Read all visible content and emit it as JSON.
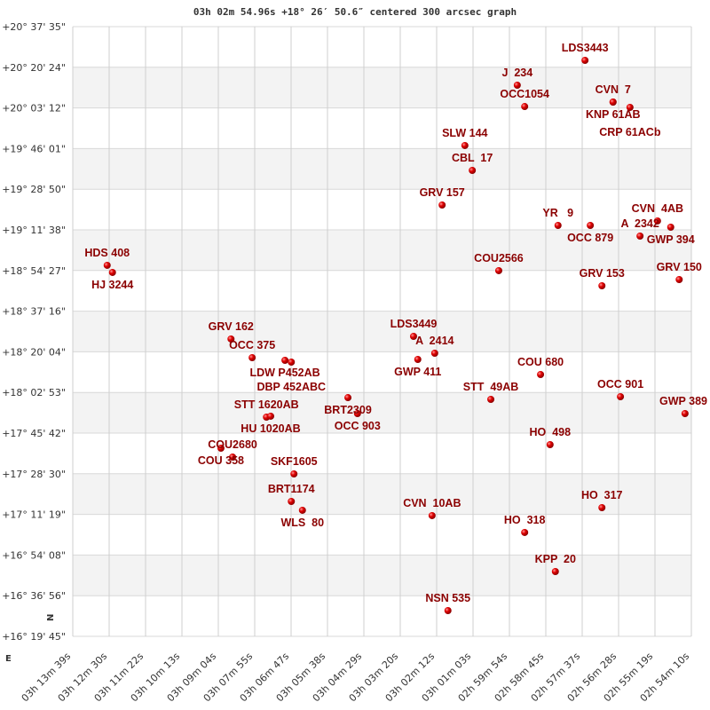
{
  "chart_data": {
    "type": "scatter",
    "title": "03h 02m 54.96s +18° 26′ 50.6″ centered 300 arcsec graph",
    "xlabel": "",
    "ylabel": "",
    "x_axis": "right ascension (decreasing to the right)",
    "x_ticks": [
      "03h 13m 39s",
      "03h 12m 30s",
      "03h 11m 22s",
      "03h 10m 13s",
      "03h 09m 04s",
      "03h 07m 55s",
      "03h 06m 47s",
      "03h 05m 38s",
      "03h 04m 29s",
      "03h 03m 20s",
      "03h 02m 12s",
      "03h 01m 03s",
      "02h 59m 54s",
      "02h 58m 45s",
      "02h 57m 37s",
      "02h 56m 28s",
      "02h 55m 19s",
      "02h 54m 10s"
    ],
    "y_ticks": [
      "+20° 37' 35\"",
      "+20° 20' 24\"",
      "+20° 03' 12\"",
      "+19° 46' 01\"",
      "+19° 28' 50\"",
      "+19° 11' 38\"",
      "+18° 54' 27\"",
      "+18° 37' 16\"",
      "+18° 20' 04\"",
      "+18° 02' 53\"",
      "+17° 45' 42\"",
      "+17° 28' 30\"",
      "+17° 11' 19\"",
      "+16° 54' 08\"",
      "+16° 36' 56\"",
      "+16° 19' 45\""
    ],
    "xlim": [
      "03h 13m 39s",
      "02h 54m 10s"
    ],
    "ylim": [
      "+16° 19' 45\"",
      "+20° 37' 35\""
    ],
    "grid": true,
    "orientation_marks": [
      "N",
      "E"
    ],
    "marker_color": "#dd0000",
    "label_color": "#8b0000",
    "points": [
      {
        "label": "LDS3443",
        "ra": "02h 57m 31s",
        "dec": "+20° 23' 19\""
      },
      {
        "label": "J  234",
        "ra": "02h 59m 39s",
        "dec": "+20° 12' 49\""
      },
      {
        "label": "OCC1054",
        "ra": "02h 59m 25s",
        "dec": "+20° 03' 48\""
      },
      {
        "label": "CVN  7",
        "ra": "02h 56m 38s",
        "dec": "+20° 05' 41\""
      },
      {
        "label": "KNP 61AB",
        "ra": "02h 56m 38s",
        "dec": "+20° 05' 41\""
      },
      {
        "label": "CRP 61ACb",
        "ra": "02h 56m 06s",
        "dec": "+20° 03' 26\""
      },
      {
        "label": "SLW 144",
        "ra": "03h 01m 18s",
        "dec": "+19° 47' 18\""
      },
      {
        "label": "CBL  17",
        "ra": "03h 01m 04s",
        "dec": "+19° 36' 47\""
      },
      {
        "label": "GRV 157",
        "ra": "03h 02m 01s",
        "dec": "+19° 22' 09\""
      },
      {
        "label": "YR   9",
        "ra": "02h 58m 22s",
        "dec": "+19° 13' 31\""
      },
      {
        "label": "OCC 879",
        "ra": "02h 57m 21s",
        "dec": "+19° 13' 31\""
      },
      {
        "label": "CVN  4AB",
        "ra": "02h 55m 14s",
        "dec": "+19° 15' 24\""
      },
      {
        "label": "GWP 394",
        "ra": "02h 54m 49s",
        "dec": "+19° 12' 46\""
      },
      {
        "label": "A  2342",
        "ra": "02h 55m 47s",
        "dec": "+19° 09' 01\""
      },
      {
        "label": "HDS 408",
        "ra": "03h 12m 34s",
        "dec": "+18° 56' 38\""
      },
      {
        "label": "HJ 3244",
        "ra": "03h 12m 24s",
        "dec": "+18° 53' 38\""
      },
      {
        "label": "COU2566",
        "ra": "03h 00m 14s",
        "dec": "+18° 54' 23\""
      },
      {
        "label": "GRV 153",
        "ra": "02h 56m 59s",
        "dec": "+18° 48' 00\""
      },
      {
        "label": "GRV 150",
        "ra": "02h 54m 33s",
        "dec": "+18° 50' 37\""
      },
      {
        "label": "GRV 162",
        "ra": "03h 08m 40s",
        "dec": "+18° 25' 29\""
      },
      {
        "label": "OCC 375",
        "ra": "03h 08m 00s",
        "dec": "+18° 17' 36\""
      },
      {
        "label": "LDW P452AB",
        "ra": "03h 06m 58s",
        "dec": "+18° 16' 28\""
      },
      {
        "label": "DBP 452ABC",
        "ra": "03h 06m 46s",
        "dec": "+18° 15' 43\""
      },
      {
        "label": "LDS3449",
        "ra": "03h 02m 55s",
        "dec": "+18° 26' 36\""
      },
      {
        "label": "A  2414",
        "ra": "03h 02m 15s",
        "dec": "+18° 19' 28\""
      },
      {
        "label": "GWP 411",
        "ra": "03h 02m 47s",
        "dec": "+18° 16' 51\""
      },
      {
        "label": "BRT2309",
        "ra": "03h 04m 59s",
        "dec": "+18° 00' 42\""
      },
      {
        "label": "OCC 903",
        "ra": "03h 04m 41s",
        "dec": "+17° 53' 57\""
      },
      {
        "label": "COU 680",
        "ra": "02h 58m 55s",
        "dec": "+18° 10' 28\""
      },
      {
        "label": "OCC 901",
        "ra": "02h 56m 24s",
        "dec": "+18° 01' 05\""
      },
      {
        "label": "STT  49AB",
        "ra": "03h 00m 29s",
        "dec": "+17° 59' 57\""
      },
      {
        "label": "GWP 389",
        "ra": "02h 54m 22s",
        "dec": "+17° 53' 57\""
      },
      {
        "label": "STT 1620AB",
        "ra": "03h 07m 33s",
        "dec": "+17° 52' 27\""
      },
      {
        "label": "HU 1020AB",
        "ra": "03h 07m 25s",
        "dec": "+17° 52' 50\""
      },
      {
        "label": "HO  498",
        "ra": "02h 58m 37s",
        "dec": "+17° 40' 49\""
      },
      {
        "label": "COU 358",
        "ra": "03h 08m 59s",
        "dec": "+17° 39' 19\""
      },
      {
        "label": "COU2680",
        "ra": "03h 08m 37s",
        "dec": "+17° 35' 34\""
      },
      {
        "label": "SKF1605",
        "ra": "03h 06m 41s",
        "dec": "+17° 28' 26\""
      },
      {
        "label": "BRT1174",
        "ra": "03h 06m 46s",
        "dec": "+17° 16' 48\""
      },
      {
        "label": "WLS  80",
        "ra": "03h 06m 25s",
        "dec": "+17° 13' 03\""
      },
      {
        "label": "CVN  10AB",
        "ra": "03h 02m 20s",
        "dec": "+17° 10' 48\""
      },
      {
        "label": "HO  317",
        "ra": "02h 56m 59s",
        "dec": "+17° 14' 10\""
      },
      {
        "label": "HO  318",
        "ra": "02h 59m 25s",
        "dec": "+17° 03' 40\""
      },
      {
        "label": "KPP  20",
        "ra": "02h 58m 27s",
        "dec": "+16° 47' 09\""
      },
      {
        "label": "NSN 535",
        "ra": "03h 01m 50s",
        "dec": "+16° 30' 38\""
      }
    ]
  }
}
